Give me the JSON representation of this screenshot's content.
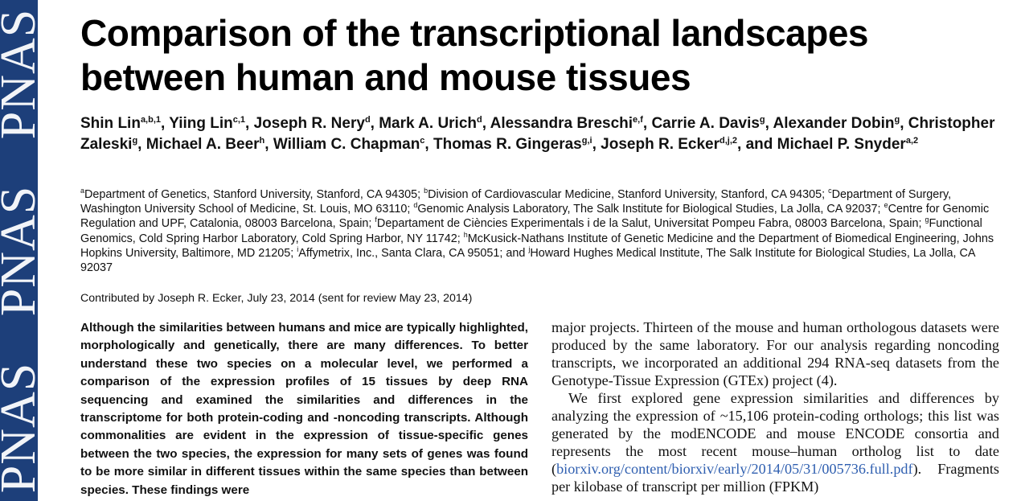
{
  "sidebar": {
    "watermark": [
      "PNAS",
      "PNAS",
      "PNAS"
    ],
    "color": "#1d3f7a"
  },
  "title": "Comparison of the transcriptional landscapes between human and mouse tissues",
  "authors": [
    {
      "name": "Shin Lin",
      "sup": "a,b,1",
      "sep": ", "
    },
    {
      "name": "Yiing Lin",
      "sup": "c,1",
      "sep": ", "
    },
    {
      "name": "Joseph R. Nery",
      "sup": "d",
      "sep": ", "
    },
    {
      "name": "Mark A. Urich",
      "sup": "d",
      "sep": ", "
    },
    {
      "name": "Alessandra Breschi",
      "sup": "e,f",
      "sep": ", "
    },
    {
      "name": "Carrie A. Davis",
      "sup": "g",
      "sep": ", "
    },
    {
      "name": "Alexander Dobin",
      "sup": "g",
      "sep": ", "
    },
    {
      "name": "Christopher Zaleski",
      "sup": "g",
      "sep": ", "
    },
    {
      "name": "Michael A. Beer",
      "sup": "h",
      "sep": ", "
    },
    {
      "name": "William C. Chapman",
      "sup": "c",
      "sep": ", "
    },
    {
      "name": "Thomas R. Gingeras",
      "sup": "g,i",
      "sep": ", "
    },
    {
      "name": "Joseph R. Ecker",
      "sup": "d,j,2",
      "sep": ", "
    },
    {
      "name": "and Michael P. Snyder",
      "sup": "a,2",
      "sep": ""
    }
  ],
  "affiliations": [
    {
      "sup": "a",
      "text": "Department of Genetics, Stanford University, Stanford, CA 94305; "
    },
    {
      "sup": "b",
      "text": "Division of Cardiovascular Medicine, Stanford University, Stanford, CA 94305; "
    },
    {
      "sup": "c",
      "text": "Department of Surgery, Washington University School of Medicine, St. Louis, MO 63110; "
    },
    {
      "sup": "d",
      "text": "Genomic Analysis Laboratory, The Salk Institute for Biological Studies, La Jolla, CA 92037; "
    },
    {
      "sup": "e",
      "text": "Centre for Genomic Regulation and UPF, Catalonia, 08003 Barcelona, Spain; "
    },
    {
      "sup": "f",
      "text": "Departament de Ciències Experimentals i de la Salut, Universitat Pompeu Fabra, 08003 Barcelona, Spain; "
    },
    {
      "sup": "g",
      "text": "Functional Genomics, Cold Spring Harbor Laboratory, Cold Spring Harbor, NY 11742; "
    },
    {
      "sup": "h",
      "text": "McKusick-Nathans Institute of Genetic Medicine and the Department of Biomedical Engineering, Johns Hopkins University, Baltimore, MD 21205; "
    },
    {
      "sup": "i",
      "text": "Affymetrix, Inc., Santa Clara, CA 95051; and "
    },
    {
      "sup": "j",
      "text": "Howard Hughes Medical Institute, The Salk Institute for Biological Studies, La Jolla, CA 92037"
    }
  ],
  "contributed": "Contributed by Joseph R. Ecker, July 23, 2014 (sent for review May 23, 2014)",
  "abstract": "Although the similarities between humans and mice are typically highlighted, morphologically and genetically, there are many differences. To better understand these two species on a molecular level, we performed a comparison of the expression profiles of 15 tissues by deep RNA sequencing and examined the similarities and differences in the transcriptome for both protein-coding and -noncoding transcripts. Although commonalities are evident in the expression of tissue-specific genes between the two species, the expression for many sets of genes was found to be more similar in different tissues within the same species than between species. These findings were",
  "body": {
    "para1": "major projects. Thirteen of the mouse and human orthologous datasets were produced by the same laboratory. For our analysis regarding noncoding transcripts, we incorporated an additional 294 RNA-seq datasets from the Genotype-Tissue Expression (GTEx) project (4).",
    "para2_start": "We first explored gene expression similarities and differences by analyzing the expression of ~15,106 protein-coding orthologs; this list was generated by the modENCODE and mouse ENCODE consortia and represents the most recent mouse–human ortholog list to date (",
    "link": "biorxiv.org/content/biorxiv/early/2014/05/31/005736.full.pdf",
    "para2_end": "). Fragments per kilobase of transcript per million (FPKM)"
  }
}
